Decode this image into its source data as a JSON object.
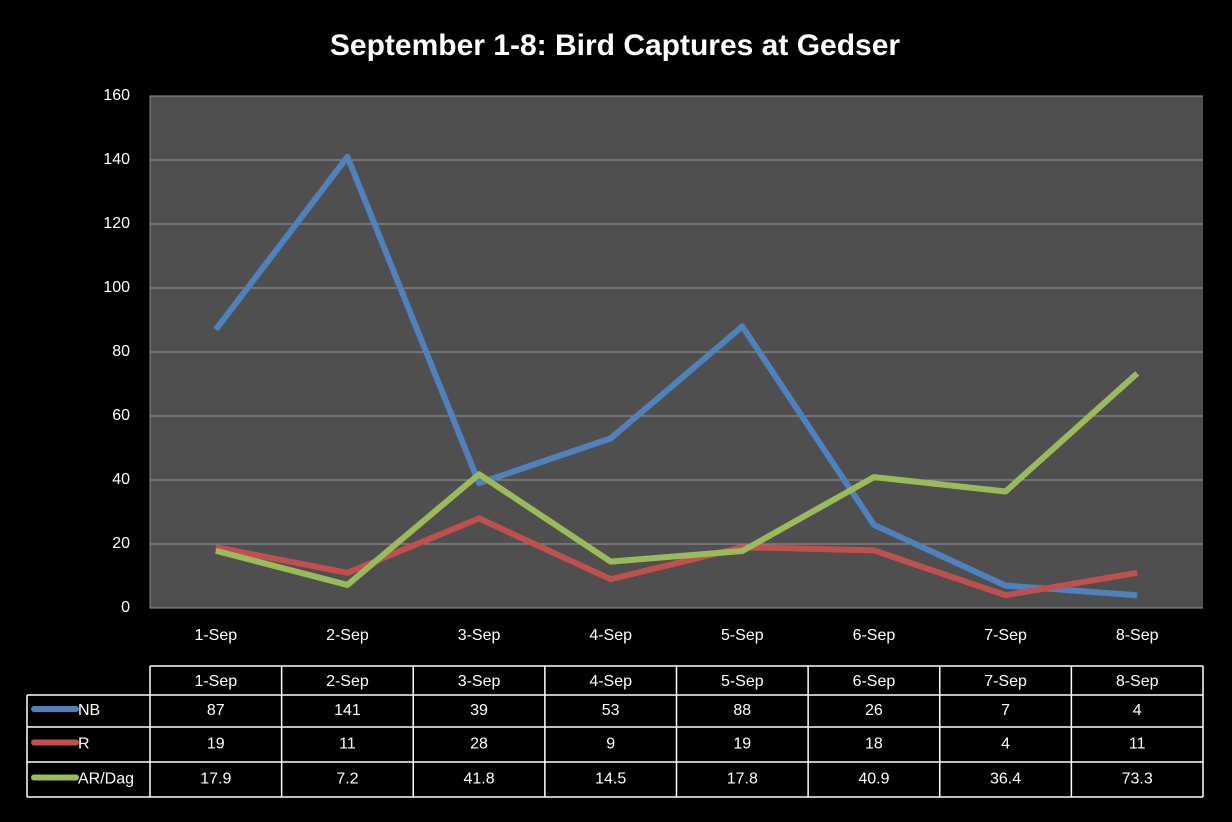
{
  "chart_data": {
    "type": "line",
    "title": "September 1-8: Bird Captures at Gedser",
    "categories": [
      "1-Sep",
      "2-Sep",
      "3-Sep",
      "4-Sep",
      "5-Sep",
      "6-Sep",
      "7-Sep",
      "8-Sep"
    ],
    "series": [
      {
        "name": "NB",
        "color": "#4f81bd",
        "values": [
          87,
          141,
          39,
          53,
          88,
          26,
          7,
          4
        ]
      },
      {
        "name": "R",
        "color": "#c0504d",
        "values": [
          19,
          11,
          28,
          9,
          19,
          18,
          4,
          11
        ]
      },
      {
        "name": "AR/Dag",
        "color": "#9bbb59",
        "values": [
          17.9,
          7.2,
          41.8,
          14.5,
          17.8,
          40.9,
          36.4,
          73.3
        ]
      }
    ],
    "ylim": [
      0,
      160
    ],
    "yticks": [
      0,
      20,
      40,
      60,
      80,
      100,
      120,
      140,
      160
    ],
    "grid": true,
    "data_table": true
  }
}
